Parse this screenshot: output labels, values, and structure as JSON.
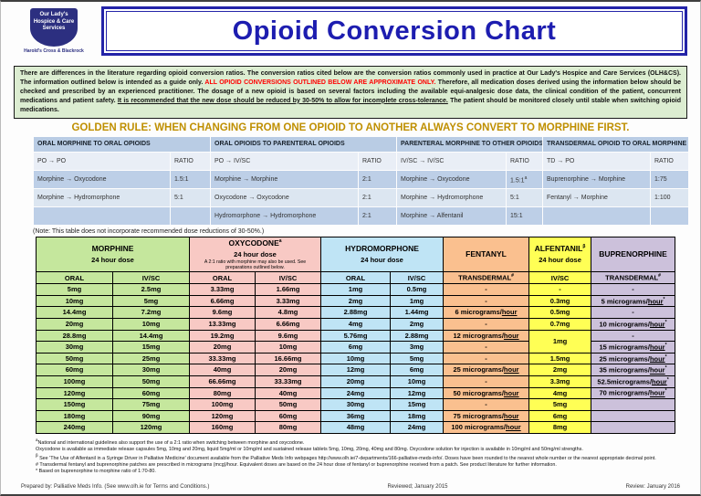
{
  "page": {
    "title": "Opioid Conversion Chart",
    "logo": {
      "name": "Our Lady's Hospice & Care Services",
      "location": "Harold's Cross & Blackrock"
    }
  },
  "disclaimer": {
    "part1": "There are differences in the literature regarding opioid conversion ratios. The conversion ratios cited below are the conversion ratios commonly used in practice at Our Lady's Hospice and Care Services (OLH&CS). The information outlined below is intended as a guide only.  ",
    "warning": "ALL OPIOID CONVERSIONS OUTLINED BELOW ARE APPROXIMATE ONLY.",
    "part2": " Therefore, all medication doses derived using the information below should be checked and prescribed by an experienced practitioner. The dosage of a new opioid is based on several factors including the available equi-analgesic dose data, the clinical condition of the patient, concurrent medications and patient safety. ",
    "underlined": "It is recommended that the new dose should be reduced by 30-50% to allow for incomplete cross-tolerance.",
    "part3": " The patient should be monitored closely until stable when switching opioid medications."
  },
  "golden_rule": "GOLDEN RULE: WHEN CHANGING FROM ONE OPIOID TO ANOTHER ALWAYS CONVERT TO MORPHINE FIRST.",
  "ratio_table": {
    "note": "(Note: This table does not incorporate recommended dose reductions of 30-50%.)",
    "groups": [
      {
        "title": "ORAL MORPHINE TO ORAL OPIOIDS",
        "from": "PO → PO",
        "ratio_label": "RATIO",
        "rows": [
          [
            "Morphine → Oxycodone",
            "1.5:1"
          ],
          [
            "Morphine → Hydromorphone",
            "5:1"
          ],
          [
            "",
            ""
          ]
        ]
      },
      {
        "title": "ORAL OPIOIDS TO PARENTERAL OPIOIDS",
        "from": "PO → IV/SC",
        "ratio_label": "RATIO",
        "rows": [
          [
            "Morphine → Morphine",
            "2:1"
          ],
          [
            "Oxycodone → Oxycodone",
            "2:1"
          ],
          [
            "Hydromorphone → Hydromorphone",
            "2:1"
          ]
        ]
      },
      {
        "title": "PARENTERAL MORPHINE TO OTHER OPIOIDS",
        "from": "IV/SC → IV/SC",
        "ratio_label": "RATIO",
        "rows": [
          [
            "Morphine → Oxycodone",
            "1.5:1^a"
          ],
          [
            "Morphine → Hydromorphone",
            "5:1"
          ],
          [
            "Morphine → Alfentanil",
            "15:1"
          ]
        ]
      },
      {
        "title": "TRANSDERMAL OPIOID TO ORAL MORPHINE",
        "from": "TD → PO",
        "ratio_label": "RATIO",
        "rows": [
          [
            "Buprenorphine → Morphine",
            "1:75"
          ],
          [
            "Fentanyl →  Morphine",
            "1:100"
          ],
          [
            "",
            ""
          ]
        ]
      }
    ]
  },
  "dose_table": {
    "columns": [
      {
        "group": "MORPHINE",
        "sub": "24 hour dose",
        "note": "",
        "color": "#c5e79d",
        "span": 2,
        "heads": [
          "ORAL",
          "IV/SC"
        ]
      },
      {
        "group": "OXYCODONE^a",
        "sub": "24 hour dose",
        "note": "A 2:1 ratio with morphine may also be used. See preparations outlined below.",
        "color": "#f8c9c4",
        "span": 2,
        "heads": [
          "ORAL",
          "IV/SC"
        ]
      },
      {
        "group": "HYDROMORPHONE",
        "sub": "24 hour dose",
        "note": "",
        "color": "#bfe4f5",
        "span": 2,
        "heads": [
          "ORAL",
          "IV/SC"
        ]
      },
      {
        "group": "FENTANYL",
        "sub": "",
        "note": "",
        "color": "#fac08f",
        "span": 1,
        "heads": [
          "TRANSDERMAL^#"
        ]
      },
      {
        "group": "ALFENTANIL^β",
        "sub": "24 hour dose",
        "note": "",
        "color": "#ffff55",
        "span": 1,
        "heads": [
          "IV/SC"
        ]
      },
      {
        "group": "BUPRENORPHINE",
        "sub": "",
        "note": "",
        "color": "#ccc1db",
        "span": 1,
        "heads": [
          "TRANSDERMAL^#"
        ]
      }
    ],
    "rows": [
      [
        "5mg",
        "2.5mg",
        "3.33mg",
        "1.66mg",
        "1mg",
        "0.5mg",
        "-",
        "-",
        "-"
      ],
      [
        "10mg",
        "5mg",
        "6.66mg",
        "3.33mg",
        "2mg",
        "1mg",
        "-",
        "0.3mg",
        "5 micrograms/hour*"
      ],
      [
        "14.4mg",
        "7.2mg",
        "9.6mg",
        "4.8mg",
        "2.88mg",
        "1.44mg",
        "6 micrograms/hour",
        "0.5mg",
        "-"
      ],
      [
        "20mg",
        "10mg",
        "13.33mg",
        "6.66mg",
        "4mg",
        "2mg",
        "-",
        "0.7mg",
        "10 micrograms/hour*"
      ],
      [
        "28.8mg",
        "14.4mg",
        "19.2mg",
        "9.6mg",
        "5.76mg",
        "2.88mg",
        "12 micrograms/hour",
        "1mg",
        "-"
      ],
      [
        "30mg",
        "15mg",
        "20mg",
        "10mg",
        "6mg",
        "3mg",
        "-",
        "@merged",
        "15 micrograms/hour*"
      ],
      [
        "50mg",
        "25mg",
        "33.33mg",
        "16.66mg",
        "10mg",
        "5mg",
        "-",
        "1.5mg",
        "25 micrograms/hour*"
      ],
      [
        "60mg",
        "30mg",
        "40mg",
        "20mg",
        "12mg",
        "6mg",
        "25 micrograms/hour",
        "2mg",
        "35 micrograms/hour*"
      ],
      [
        "100mg",
        "50mg",
        "66.66mg",
        "33.33mg",
        "20mg",
        "10mg",
        "-",
        "3.3mg",
        "52.5micrograms/hour*"
      ],
      [
        "120mg",
        "60mg",
        "80mg",
        "40mg",
        "24mg",
        "12mg",
        "50 micrograms/hour",
        "4mg",
        "70 micrograms/hour*"
      ],
      [
        "150mg",
        "75mg",
        "100mg",
        "50mg",
        "30mg",
        "15mg",
        "-",
        "5mg",
        ""
      ],
      [
        "180mg",
        "90mg",
        "120mg",
        "60mg",
        "36mg",
        "18mg",
        "75 micrograms/hour",
        "6mg",
        ""
      ],
      [
        "240mg",
        "120mg",
        "160mg",
        "80mg",
        "48mg",
        "24mg",
        "100 micrograms/hour",
        "8mg",
        ""
      ]
    ]
  },
  "footnotes": [
    "^aNational and international guidelines also support the use of a 2:1 ratio when switching between morphine and oxycodone.",
    "Oxycodone is available as immediate release capsules 5mg, 10mg and 20mg, liquid 5mg/ml or 10mg/ml and sustained release tablets 5mg, 10mg, 20mg, 40mg and 80mg. Oxycodone solution for injection is available in 10mg/ml and 50mg/ml strengths.",
    "^β See 'The Use of Alfentanil in a Syringe Driver in Palliative Medicine' document available from the Palliative Meds Info webpages http://www.olh.ie/7-departments/166-palliative-meds-info/. Doses have been rounded to the nearest whole number or the nearest appropriate decimal point.",
    "# Transdermal fentanyl and buprenorphine patches are prescribed in micrograms (mcg)/hour. Equivalent doses are based on the 24 hour dose of fentanyl or buprenorphine received from a patch. See product literature for further information.",
    "* Based on buprenorphine to morphine ratio of 1:70-80."
  ],
  "footer": {
    "left": "Prepared by: Palliative Meds Info. (See www.olh.ie for Terms and Conditions.)",
    "center": "Reviewed; January 2015",
    "right": "Review: January 2016"
  }
}
